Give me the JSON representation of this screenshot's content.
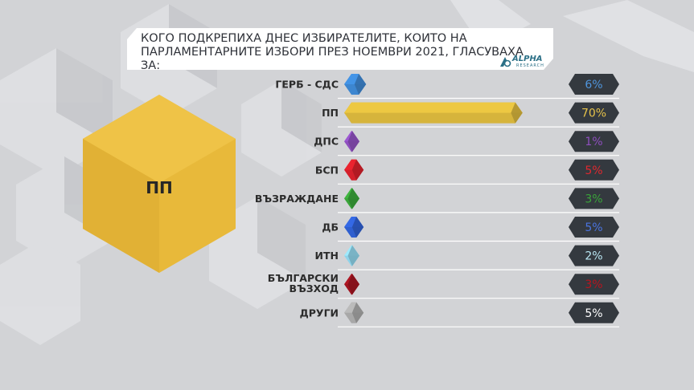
{
  "title": "КОГО ПОДКРЕПИХА ДНЕС ИЗБИРАТЕЛИТЕ, КОИТО НА\nПАРЛАМЕНТАРНИТЕ ИЗБОРИ ПРЕЗ НОЕМВРИ 2021, ГЛАСУВАХА ЗА:",
  "logo": {
    "word": "ALPHA",
    "sub": "RESEARCH"
  },
  "highlight_party": "ПП",
  "chart_data": {
    "type": "bar",
    "categories": [
      "ГЕРБ - СДС",
      "ПП",
      "ДПС",
      "БСП",
      "ВЪЗРАЖДАНЕ",
      "ДБ",
      "ИТН",
      "БЪЛГАРСКИ ВЪЗХОД",
      "ДРУГИ"
    ],
    "label_lines": [
      [
        "ГЕРБ - СДС"
      ],
      [
        "ПП"
      ],
      [
        "ДПС"
      ],
      [
        "БСП"
      ],
      [
        "ВЪЗРАЖДАНЕ"
      ],
      [
        "ДБ"
      ],
      [
        "ИТН"
      ],
      [
        "БЪЛГАРСКИ",
        "ВЪЗХОД"
      ],
      [
        "ДРУГИ"
      ]
    ],
    "values": [
      6,
      70,
      1,
      5,
      3,
      5,
      2,
      3,
      5
    ],
    "value_labels": [
      "6%",
      "70%",
      "1%",
      "5%",
      "3%",
      "5%",
      "2%",
      "3%",
      "5%"
    ],
    "colors": [
      "#3d86d0",
      "#d6b43c",
      "#8e4fbe",
      "#d4202b",
      "#3aa43a",
      "#2f5fcf",
      "#8fd3ea",
      "#a01420",
      "#a8a8a8"
    ],
    "label_colors": [
      "#4f95dc",
      "#e6c24a",
      "#8e4fbe",
      "#e0282f",
      "#3aa43a",
      "#4a74e0",
      "#b9e6f2",
      "#b8141e",
      "#ffffff"
    ],
    "xlim": [
      0,
      100
    ]
  }
}
